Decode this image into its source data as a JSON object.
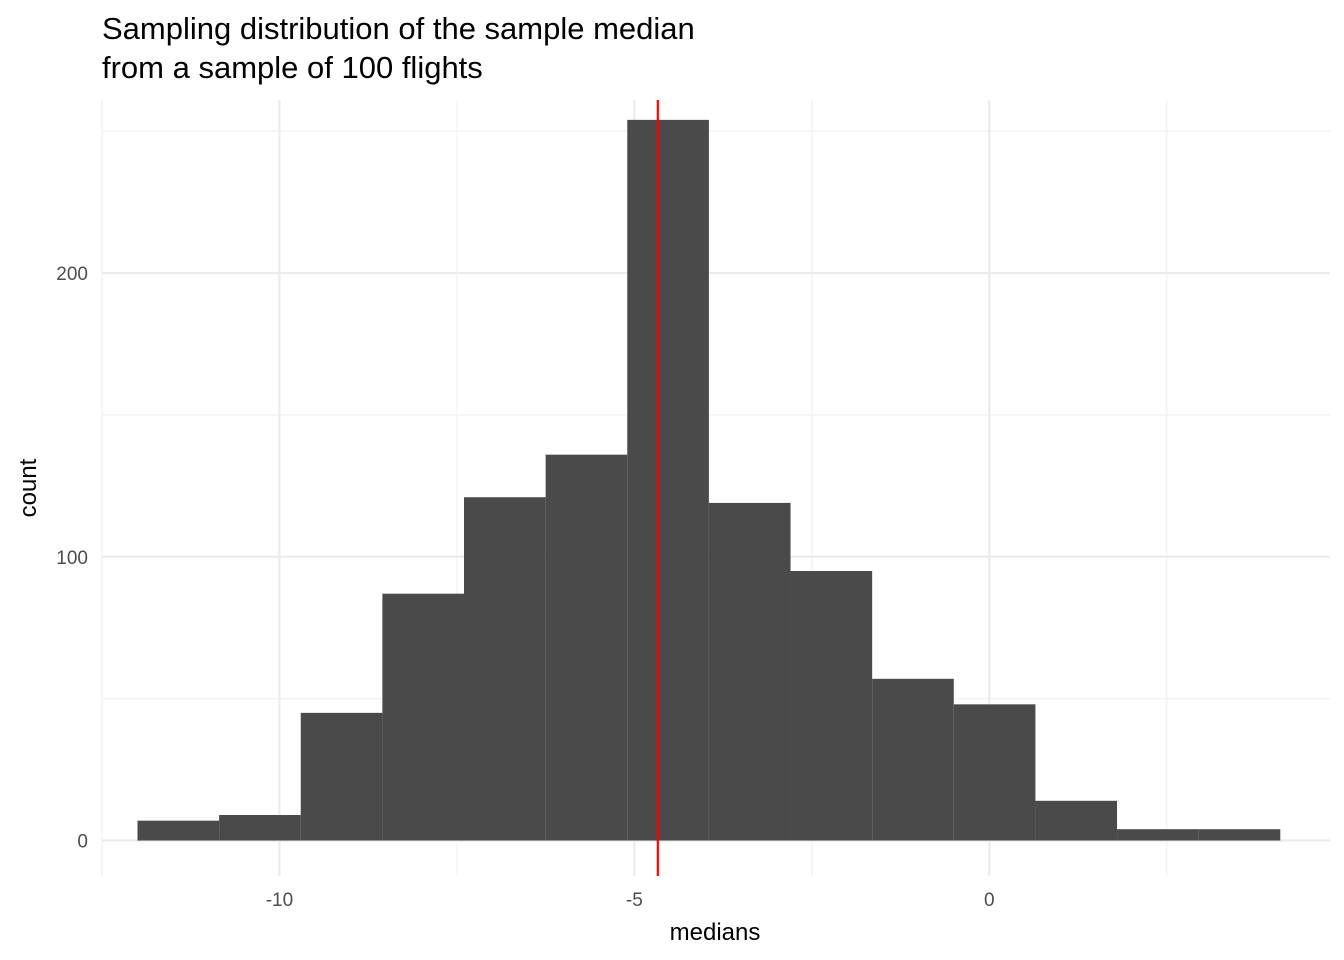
{
  "chart_data": {
    "type": "histogram",
    "title_lines": [
      "Sampling distribution of the sample median",
      "from a sample of 100 flights"
    ],
    "xlabel": "medians",
    "ylabel": "count",
    "xlim": [
      -12.5,
      4.8
    ],
    "ylim": [
      -12.5,
      261
    ],
    "x_major_ticks": [
      -10,
      -5,
      0
    ],
    "x_tick_labels": [
      "-10",
      "-5",
      "0"
    ],
    "x_minor_ticks": [
      -12.5,
      -7.5,
      -2.5,
      2.5
    ],
    "y_major_ticks": [
      0,
      100,
      200
    ],
    "y_tick_labels": [
      "0",
      "100",
      "200"
    ],
    "y_minor_ticks": [
      50,
      150,
      250
    ],
    "bins": [
      {
        "x0": -12.0,
        "x1": -10.85,
        "count": 7
      },
      {
        "x0": -10.85,
        "x1": -9.7,
        "count": 9
      },
      {
        "x0": -9.7,
        "x1": -8.55,
        "count": 45
      },
      {
        "x0": -8.55,
        "x1": -7.4,
        "count": 87
      },
      {
        "x0": -7.4,
        "x1": -6.25,
        "count": 121
      },
      {
        "x0": -6.25,
        "x1": -5.1,
        "count": 136
      },
      {
        "x0": -5.1,
        "x1": -3.95,
        "count": 254
      },
      {
        "x0": -3.95,
        "x1": -2.8,
        "count": 119
      },
      {
        "x0": -2.8,
        "x1": -1.65,
        "count": 95
      },
      {
        "x0": -1.65,
        "x1": -0.5,
        "count": 57
      },
      {
        "x0": -0.5,
        "x1": 0.65,
        "count": 48
      },
      {
        "x0": 0.65,
        "x1": 1.8,
        "count": 14
      },
      {
        "x0": 1.8,
        "x1": 2.95,
        "count": 4
      },
      {
        "x0": 2.95,
        "x1": 4.1,
        "count": 4
      }
    ],
    "vline": {
      "x": -4.67,
      "color": "#ff0000"
    },
    "bar_color": "#4a4a4a",
    "grid": true,
    "grid_major_color": "#ebebeb",
    "grid_minor_color": "#f2f2f2"
  }
}
